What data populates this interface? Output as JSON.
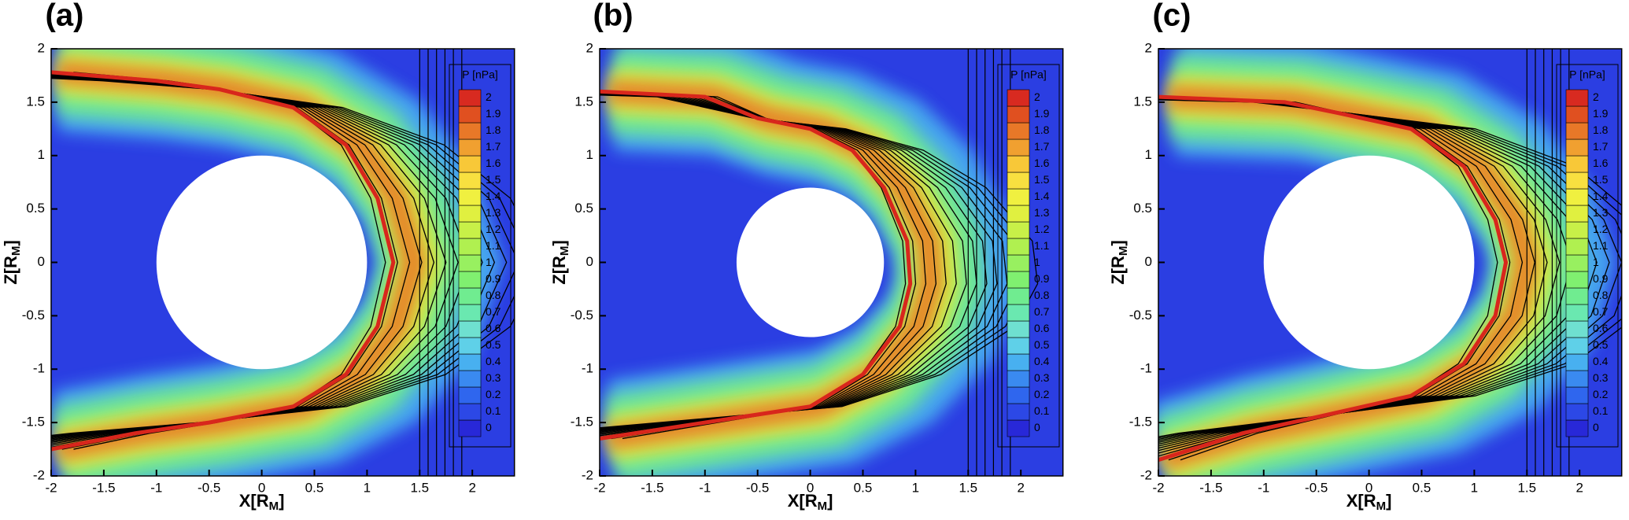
{
  "chart_data": [
    {
      "type": "contour",
      "panel_label": "(a)",
      "xlabel": [
        "X[R",
        "M",
        "]"
      ],
      "ylabel": [
        "Z[R",
        "M",
        "]"
      ],
      "xlim": [
        -2,
        2.4
      ],
      "ylim": [
        -2,
        2
      ],
      "xticks": [
        -2,
        -1.5,
        -1,
        -0.5,
        0,
        0.5,
        1,
        1.5,
        2
      ],
      "yticks": [
        -2,
        -1.5,
        -1,
        -0.5,
        0,
        0.5,
        1,
        1.5,
        2
      ],
      "body_radius": 1,
      "boundary": {
        "color": "#d8261c",
        "x": [
          -2,
          -1,
          -0.4,
          0.3,
          0.8,
          1.1,
          1.25,
          1.1,
          0.8,
          0.3,
          -0.5,
          -1.2,
          -2
        ],
        "z": [
          1.78,
          1.7,
          1.62,
          1.45,
          1.1,
          0.6,
          0,
          -0.6,
          -1.05,
          -1.35,
          -1.5,
          -1.6,
          -1.75
        ]
      },
      "colorbar": {
        "title": "P [nPa]",
        "ticks": [
          0,
          0.1,
          0.2,
          0.3,
          0.4,
          0.5,
          0.6,
          0.7,
          0.8,
          0.9,
          1,
          1.1,
          1.2,
          1.3,
          1.4,
          1.5,
          1.6,
          1.7,
          1.8,
          1.9,
          2
        ],
        "colors": [
          "#2828d8",
          "#2c48e6",
          "#2f66ee",
          "#3a8af0",
          "#48b0f0",
          "#5fd0e8",
          "#6fe0d0",
          "#6ae8b0",
          "#70ec90",
          "#80f070",
          "#98f060",
          "#b0f050",
          "#c8f048",
          "#e0f040",
          "#f0f040",
          "#f8e040",
          "#f8c838",
          "#f0a030",
          "#e87828",
          "#e05020",
          "#d82a20"
        ]
      }
    },
    {
      "type": "contour",
      "panel_label": "(b)",
      "xlabel": [
        "X[R",
        "M",
        "]"
      ],
      "ylabel": [
        "Z[R",
        "M",
        "]"
      ],
      "xlim": [
        -2,
        2.4
      ],
      "ylim": [
        -2,
        2
      ],
      "xticks": [
        -2,
        -1.5,
        -1,
        -0.5,
        0,
        0.5,
        1,
        1.5,
        2
      ],
      "yticks": [
        -2,
        -1.5,
        -1,
        -0.5,
        0,
        0.5,
        1,
        1.5,
        2
      ],
      "body_radius": 0.7,
      "boundary": {
        "color": "#d8261c",
        "x": [
          -2,
          -1,
          -0.5,
          0,
          0.4,
          0.7,
          0.92,
          0.95,
          0.85,
          0.5,
          0,
          -1,
          -2
        ],
        "z": [
          1.6,
          1.55,
          1.35,
          1.25,
          1.05,
          0.7,
          0.2,
          -0.2,
          -0.6,
          -1.05,
          -1.35,
          -1.5,
          -1.65
        ]
      },
      "colorbar": {
        "title": "P [nPa]",
        "ticks": [
          0,
          0.1,
          0.2,
          0.3,
          0.4,
          0.5,
          0.6,
          0.7,
          0.8,
          0.9,
          1,
          1.1,
          1.2,
          1.3,
          1.4,
          1.5,
          1.6,
          1.7,
          1.8,
          1.9,
          2
        ],
        "colors": [
          "#2828d8",
          "#2c48e6",
          "#2f66ee",
          "#3a8af0",
          "#48b0f0",
          "#5fd0e8",
          "#6fe0d0",
          "#6ae8b0",
          "#70ec90",
          "#80f070",
          "#98f060",
          "#b0f050",
          "#c8f048",
          "#e0f040",
          "#f0f040",
          "#f8e040",
          "#f8c838",
          "#f0a030",
          "#e87828",
          "#e05020",
          "#d82a20"
        ]
      }
    },
    {
      "type": "contour",
      "panel_label": "(c)",
      "xlabel": [
        "X[R",
        "M",
        "]"
      ],
      "ylabel": [
        "Z[R",
        "M",
        "]"
      ],
      "xlim": [
        -2,
        2.4
      ],
      "ylim": [
        -2,
        2
      ],
      "xticks": [
        -2,
        -1.5,
        -1,
        -0.5,
        0,
        0.5,
        1,
        1.5,
        2
      ],
      "yticks": [
        -2,
        -1.5,
        -1,
        -0.5,
        0,
        0.5,
        1,
        1.5,
        2
      ],
      "body_radius": 1,
      "boundary": {
        "color": "#d8261c",
        "x": [
          -2,
          -0.8,
          -0.3,
          0.4,
          0.9,
          1.2,
          1.3,
          1.2,
          0.9,
          0.4,
          -0.5,
          -1.2,
          -2
        ],
        "z": [
          1.55,
          1.5,
          1.4,
          1.25,
          0.9,
          0.4,
          0,
          -0.5,
          -0.95,
          -1.25,
          -1.45,
          -1.6,
          -1.85
        ]
      },
      "colorbar": {
        "title": "P [nPa]",
        "ticks": [
          0,
          0.1,
          0.2,
          0.3,
          0.4,
          0.5,
          0.6,
          0.7,
          0.8,
          0.9,
          1,
          1.1,
          1.2,
          1.3,
          1.4,
          1.5,
          1.6,
          1.7,
          1.8,
          1.9,
          2
        ],
        "colors": [
          "#2828d8",
          "#2c48e6",
          "#2f66ee",
          "#3a8af0",
          "#48b0f0",
          "#5fd0e8",
          "#6fe0d0",
          "#6ae8b0",
          "#70ec90",
          "#80f070",
          "#98f060",
          "#b0f050",
          "#c8f048",
          "#e0f040",
          "#f0f040",
          "#f8e040",
          "#f8c838",
          "#f0a030",
          "#e87828",
          "#e05020",
          "#d82a20"
        ]
      }
    }
  ]
}
